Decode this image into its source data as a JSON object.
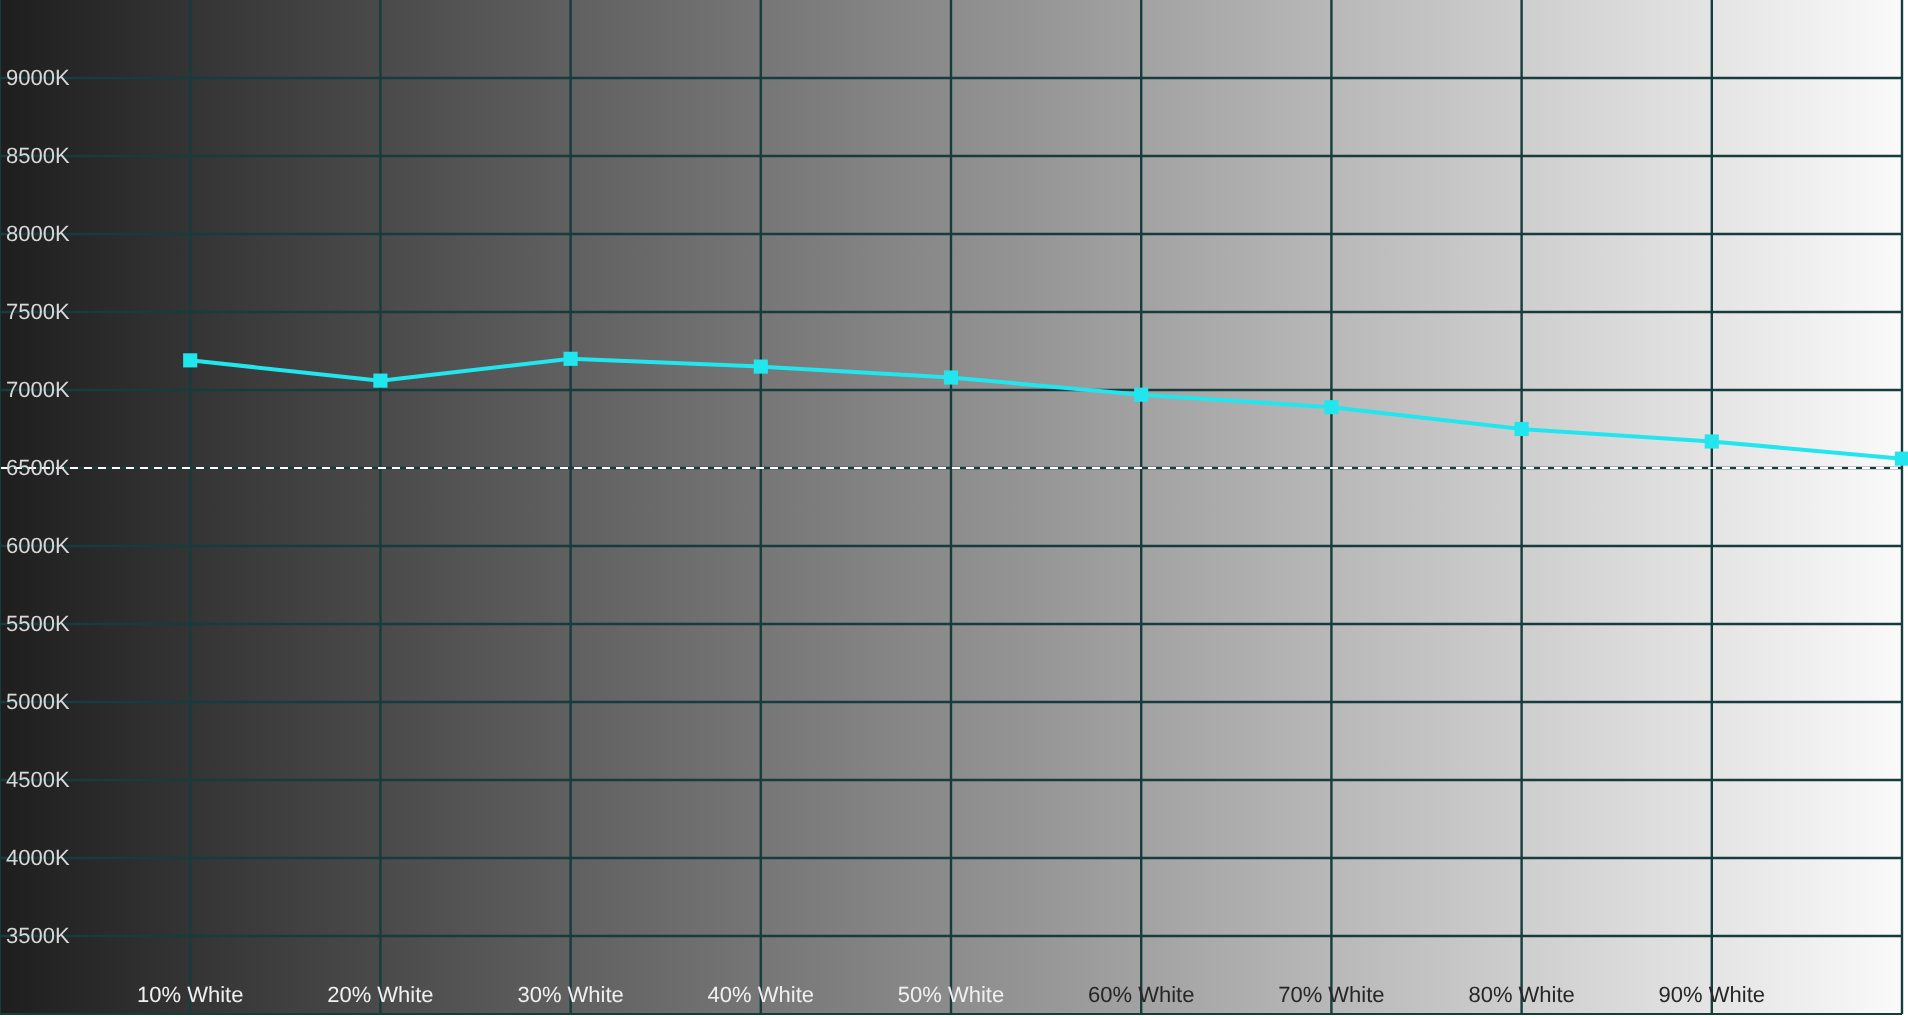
{
  "chart_data": {
    "type": "line",
    "x": [
      10,
      20,
      30,
      40,
      50,
      60,
      70,
      80,
      90,
      100
    ],
    "series": [
      {
        "color": "#22e6ee",
        "values": [
          7190,
          7060,
          7200,
          7150,
          7080,
          6970,
          6890,
          6750,
          6670,
          6560
        ]
      }
    ],
    "xlim": [
      0,
      100
    ],
    "xticks": [
      {
        "value": 10,
        "label": "10% White"
      },
      {
        "value": 20,
        "label": "20% White"
      },
      {
        "value": 30,
        "label": "30% White"
      },
      {
        "value": 40,
        "label": "40% White"
      },
      {
        "value": 50,
        "label": "50% White"
      },
      {
        "value": 60,
        "label": "60% White"
      },
      {
        "value": 70,
        "label": "70% White"
      },
      {
        "value": 80,
        "label": "80% White"
      },
      {
        "value": 90,
        "label": "90% White"
      },
      {
        "value": 100,
        "label": null
      }
    ],
    "ylim": [
      3000,
      9500
    ],
    "yticks": [
      {
        "value": 3500,
        "label": "3500K"
      },
      {
        "value": 4000,
        "label": "4000K"
      },
      {
        "value": 4500,
        "label": "4500K"
      },
      {
        "value": 5000,
        "label": "5000K"
      },
      {
        "value": 5500,
        "label": "5500K"
      },
      {
        "value": 6000,
        "label": "6000K"
      },
      {
        "value": 6500,
        "label": "6500K"
      },
      {
        "value": 7000,
        "label": "7000K"
      },
      {
        "value": 7500,
        "label": "7500K"
      },
      {
        "value": 8000,
        "label": "8000K"
      },
      {
        "value": 8500,
        "label": "8500K"
      },
      {
        "value": 9000,
        "label": "9000K"
      }
    ],
    "grid": true,
    "marker": "square",
    "line_style": "solid",
    "ref_lines": [
      {
        "axis": "y",
        "value": 6500,
        "color": "#ffffff",
        "line_style": "dashed"
      }
    ]
  }
}
